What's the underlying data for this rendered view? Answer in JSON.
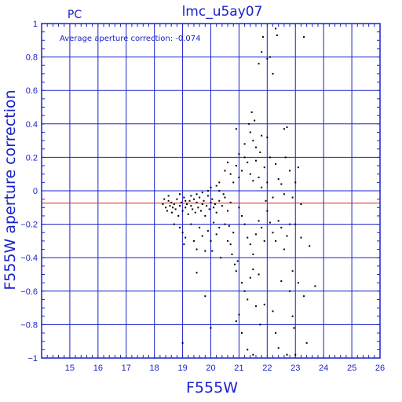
{
  "chart_data": {
    "type": "scatter",
    "title": "lmc_u5ay07",
    "corner_label": "PC",
    "annotation": "Average aperture correction: -0.074",
    "xlabel": "F555W",
    "ylabel": "F555W aperture correction",
    "xlim": [
      14,
      26
    ],
    "ylim": [
      -1,
      1
    ],
    "x_ticks": [
      15,
      16,
      17,
      18,
      19,
      20,
      21,
      22,
      23,
      24,
      25,
      26
    ],
    "y_ticks": [
      -1,
      -0.8,
      -0.6,
      -0.4,
      -0.2,
      0,
      0.2,
      0.4,
      0.6,
      0.8,
      1
    ],
    "grid": true,
    "reference_line": {
      "y": -0.074,
      "color": "#e02020"
    },
    "colors": {
      "axis": "#1a22c8",
      "points": "#000000"
    },
    "points": [
      [
        18.3,
        -0.08
      ],
      [
        18.35,
        -0.05
      ],
      [
        18.4,
        -0.1
      ],
      [
        18.45,
        -0.12
      ],
      [
        18.5,
        -0.06
      ],
      [
        18.55,
        -0.09
      ],
      [
        18.6,
        -0.07
      ],
      [
        18.62,
        -0.13
      ],
      [
        18.7,
        -0.08
      ],
      [
        18.75,
        -0.11
      ],
      [
        18.8,
        -0.05
      ],
      [
        18.85,
        -0.15
      ],
      [
        18.9,
        -0.09
      ],
      [
        18.95,
        -0.07
      ],
      [
        19.0,
        -0.12
      ],
      [
        19.05,
        -0.04
      ],
      [
        19.1,
        -0.1
      ],
      [
        19.15,
        -0.08
      ],
      [
        19.2,
        -0.14
      ],
      [
        19.25,
        -0.06
      ],
      [
        19.3,
        -0.09
      ],
      [
        19.35,
        -0.11
      ],
      [
        19.4,
        -0.05
      ],
      [
        19.45,
        -0.13
      ],
      [
        19.5,
        -0.07
      ],
      [
        19.55,
        -0.1
      ],
      [
        19.6,
        -0.04
      ],
      [
        19.65,
        -0.12
      ],
      [
        19.7,
        -0.08
      ],
      [
        19.75,
        -0.06
      ],
      [
        19.8,
        -0.15
      ],
      [
        19.85,
        -0.09
      ],
      [
        19.9,
        -0.03
      ],
      [
        19.95,
        -0.11
      ],
      [
        20.0,
        -0.07
      ],
      [
        20.05,
        -0.05
      ],
      [
        20.1,
        -0.1
      ],
      [
        20.15,
        -0.08
      ],
      [
        20.2,
        -0.13
      ],
      [
        20.3,
        -0.06
      ],
      [
        20.4,
        -0.09
      ],
      [
        20.5,
        -0.04
      ],
      [
        20.6,
        -0.12
      ],
      [
        20.7,
        -0.07
      ],
      [
        18.5,
        -0.03
      ],
      [
        18.65,
        -0.1
      ],
      [
        18.9,
        -0.02
      ],
      [
        19.1,
        -0.06
      ],
      [
        19.3,
        -0.03
      ],
      [
        19.5,
        -0.02
      ],
      [
        19.7,
        -0.01
      ],
      [
        19.9,
        0.0
      ],
      [
        20.0,
        0.02
      ],
      [
        20.2,
        0.03
      ],
      [
        20.3,
        0.0
      ],
      [
        20.45,
        -0.02
      ],
      [
        18.7,
        -0.2
      ],
      [
        18.9,
        -0.22
      ],
      [
        19.0,
        -0.25
      ],
      [
        19.05,
        -0.32
      ],
      [
        19.1,
        -0.28
      ],
      [
        19.3,
        -0.2
      ],
      [
        19.4,
        -0.3
      ],
      [
        19.5,
        -0.35
      ],
      [
        19.6,
        -0.22
      ],
      [
        19.7,
        -0.27
      ],
      [
        19.8,
        -0.36
      ],
      [
        19.9,
        -0.24
      ],
      [
        20.0,
        -0.3
      ],
      [
        20.05,
        -0.36
      ],
      [
        20.1,
        -0.19
      ],
      [
        20.2,
        -0.26
      ],
      [
        20.3,
        -0.22
      ],
      [
        20.35,
        -0.4
      ],
      [
        20.5,
        -0.2
      ],
      [
        20.6,
        -0.3
      ],
      [
        20.65,
        -0.21
      ],
      [
        20.7,
        -0.32
      ],
      [
        20.75,
        -0.38
      ],
      [
        20.8,
        -0.25
      ],
      [
        20.85,
        -0.44
      ],
      [
        20.9,
        -0.48
      ],
      [
        20.95,
        -0.42
      ],
      [
        19.5,
        -0.49
      ],
      [
        19.8,
        -0.63
      ],
      [
        20.0,
        -0.82
      ],
      [
        19.0,
        -0.91
      ],
      [
        20.9,
        -0.78
      ],
      [
        21.0,
        -0.74
      ],
      [
        21.1,
        -0.55
      ],
      [
        21.2,
        -0.6
      ],
      [
        21.3,
        -0.65
      ],
      [
        21.4,
        -0.52
      ],
      [
        21.1,
        -0.85
      ],
      [
        21.3,
        -0.95
      ],
      [
        21.5,
        -0.98
      ],
      [
        21.6,
        -0.69
      ],
      [
        21.5,
        -0.47
      ],
      [
        21.7,
        -0.5
      ],
      [
        21.75,
        -0.8
      ],
      [
        21.9,
        -0.68
      ],
      [
        22.2,
        -0.72
      ],
      [
        22.3,
        -0.85
      ],
      [
        22.4,
        -0.94
      ],
      [
        22.5,
        -0.54
      ],
      [
        22.8,
        -0.6
      ],
      [
        22.9,
        -0.75
      ],
      [
        22.95,
        -0.82
      ],
      [
        22.7,
        -0.98
      ],
      [
        23.0,
        -0.98
      ],
      [
        23.4,
        -0.91
      ],
      [
        23.1,
        -0.55
      ],
      [
        23.3,
        -0.63
      ],
      [
        23.7,
        -0.57
      ],
      [
        23.5,
        -0.33
      ],
      [
        23.2,
        -0.28
      ],
      [
        21.0,
        -0.1
      ],
      [
        21.1,
        -0.15
      ],
      [
        21.2,
        -0.2
      ],
      [
        21.3,
        -0.28
      ],
      [
        21.4,
        -0.32
      ],
      [
        21.5,
        -0.38
      ],
      [
        21.6,
        -0.26
      ],
      [
        21.7,
        -0.18
      ],
      [
        21.8,
        -0.22
      ],
      [
        21.9,
        -0.3
      ],
      [
        22.0,
        -0.12
      ],
      [
        22.1,
        -0.19
      ],
      [
        22.2,
        -0.25
      ],
      [
        22.3,
        -0.3
      ],
      [
        22.4,
        -0.18
      ],
      [
        22.5,
        -0.22
      ],
      [
        22.6,
        -0.35
      ],
      [
        22.7,
        -0.27
      ],
      [
        22.8,
        -0.2
      ],
      [
        23.0,
        -0.2
      ],
      [
        22.9,
        -0.48
      ],
      [
        20.3,
        0.05
      ],
      [
        20.5,
        0.12
      ],
      [
        20.6,
        0.17
      ],
      [
        20.7,
        0.1
      ],
      [
        20.8,
        0.05
      ],
      [
        20.9,
        0.15
      ],
      [
        21.0,
        0.08
      ],
      [
        21.1,
        0.12
      ],
      [
        21.2,
        0.2
      ],
      [
        21.3,
        0.17
      ],
      [
        21.4,
        0.1
      ],
      [
        21.5,
        0.06
      ],
      [
        21.6,
        0.18
      ],
      [
        21.7,
        0.08
      ],
      [
        21.8,
        0.02
      ],
      [
        21.9,
        0.14
      ],
      [
        22.0,
        0.05
      ],
      [
        22.1,
        0.2
      ],
      [
        22.3,
        0.16
      ],
      [
        22.4,
        0.07
      ],
      [
        22.5,
        0.04
      ],
      [
        22.6,
        -0.02
      ],
      [
        22.8,
        0.12
      ],
      [
        22.9,
        -0.04
      ],
      [
        23.0,
        0.05
      ],
      [
        23.1,
        0.14
      ],
      [
        23.2,
        -0.08
      ],
      [
        22.2,
        -0.04
      ],
      [
        21.95,
        -0.06
      ],
      [
        20.9,
        0.37
      ],
      [
        21.0,
        0.22
      ],
      [
        21.2,
        0.28
      ],
      [
        21.35,
        0.4
      ],
      [
        21.4,
        0.35
      ],
      [
        21.45,
        0.47
      ],
      [
        21.5,
        0.3
      ],
      [
        21.55,
        0.42
      ],
      [
        21.6,
        0.26
      ],
      [
        21.8,
        0.33
      ],
      [
        22.0,
        0.32
      ],
      [
        22.6,
        0.37
      ],
      [
        22.7,
        0.38
      ],
      [
        21.7,
        0.76
      ],
      [
        21.8,
        0.83
      ],
      [
        22.0,
        0.79
      ],
      [
        22.1,
        0.8
      ],
      [
        22.2,
        0.7
      ],
      [
        22.3,
        0.97
      ],
      [
        22.35,
        0.93
      ],
      [
        23.3,
        0.92
      ],
      [
        21.85,
        0.92
      ],
      [
        21.75,
        0.23
      ],
      [
        22.65,
        0.2
      ]
    ]
  }
}
